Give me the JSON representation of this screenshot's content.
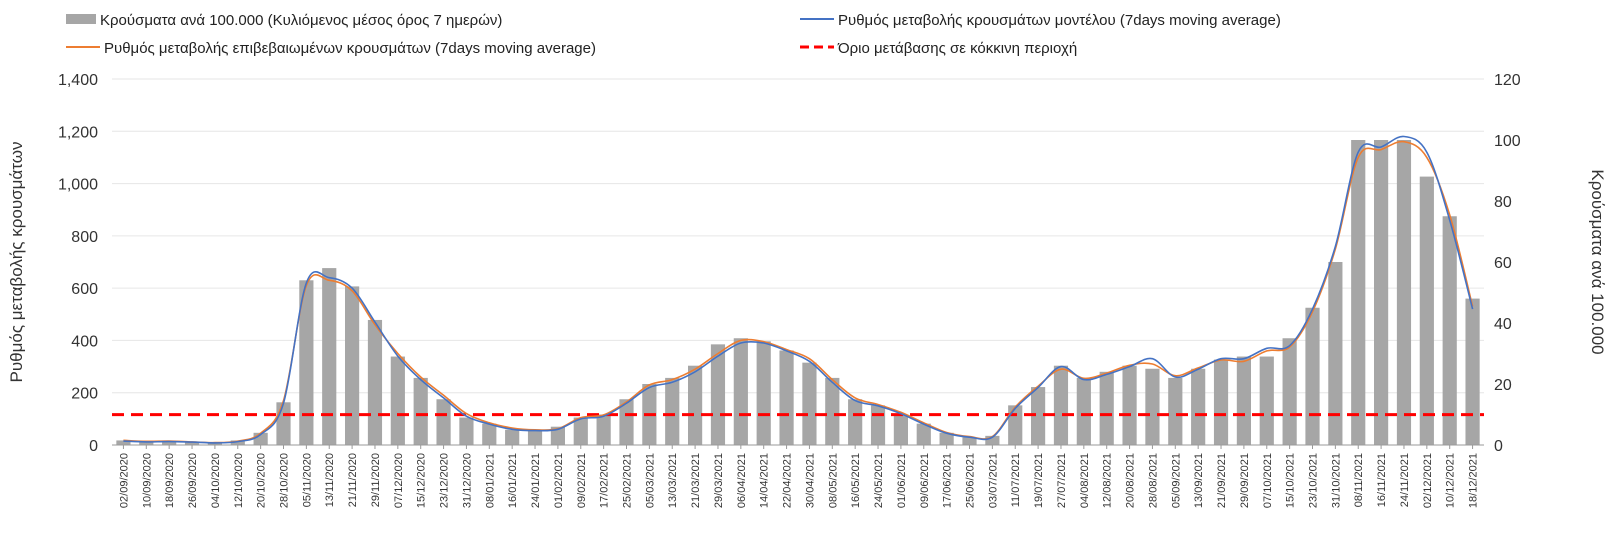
{
  "chart_data": {
    "type": "bar",
    "title": "",
    "ylabel": "Ρυθμός μεταβολής κρουσμάτων",
    "y2label": "Κρούσματα ανά 100.000",
    "ylim": [
      0,
      1400
    ],
    "y2lim": [
      0,
      120
    ],
    "yticks": [
      "0",
      "200",
      "400",
      "600",
      "800",
      "1,000",
      "1,200",
      "1,400"
    ],
    "y2ticks": [
      "0",
      "20",
      "40",
      "60",
      "80",
      "100",
      "120"
    ],
    "grid": true,
    "legend_position": "top",
    "x_labels": [
      "02/09/2020",
      "10/09/2020",
      "18/09/2020",
      "26/09/2020",
      "04/10/2020",
      "12/10/2020",
      "20/10/2020",
      "28/10/2020",
      "05/11/2020",
      "13/11/2020",
      "21/11/2020",
      "29/11/2020",
      "07/12/2020",
      "15/12/2020",
      "23/12/2020",
      "31/12/2020",
      "08/01/2021",
      "16/01/2021",
      "24/01/2021",
      "01/02/2021",
      "09/02/2021",
      "17/02/2021",
      "25/02/2021",
      "05/03/2021",
      "13/03/2021",
      "21/03/2021",
      "29/03/2021",
      "06/04/2021",
      "14/04/2021",
      "22/04/2021",
      "30/04/2021",
      "08/05/2021",
      "16/05/2021",
      "24/05/2021",
      "01/06/2021",
      "09/06/2021",
      "17/06/2021",
      "25/06/2021",
      "03/07/2021",
      "11/07/2021",
      "19/07/2021",
      "27/07/2021",
      "04/08/2021",
      "12/08/2021",
      "20/08/2021",
      "28/08/2021",
      "05/09/2021",
      "13/09/2021",
      "21/09/2021",
      "29/09/2021",
      "07/10/2021",
      "15/10/2021",
      "23/10/2021",
      "31/10/2021",
      "08/11/2021",
      "16/11/2021",
      "24/11/2021",
      "02/12/2021",
      "10/12/2021",
      "18/12/2021"
    ],
    "series": [
      {
        "name": "Κρούσματα ανά 100.000 (Κυλιόμενος μέσος όρος 7 ημερών)",
        "kind": "bar",
        "axis": "right",
        "color": "#a6a6a6",
        "values": [
          1.5,
          1.2,
          1.3,
          1.1,
          0.8,
          1.5,
          4,
          14,
          54,
          58,
          52,
          41,
          29,
          22,
          15,
          9,
          7,
          5,
          5,
          6,
          9,
          10,
          15,
          20,
          22,
          26,
          33,
          35,
          34,
          31,
          27,
          22,
          15,
          13,
          10,
          7,
          4,
          2.5,
          3,
          13,
          19,
          26,
          22,
          24,
          26,
          25,
          22,
          25,
          28,
          29,
          29,
          35,
          45,
          60,
          100,
          100,
          100,
          88,
          75,
          48
        ]
      },
      {
        "name": "Ρυθμός μεταβολής κρουσμάτων μοντέλου (7days moving average)",
        "kind": "line",
        "axis": "left",
        "color": "#4472c4",
        "values": [
          15,
          12,
          13,
          11,
          8,
          13,
          40,
          160,
          620,
          640,
          600,
          470,
          340,
          250,
          180,
          110,
          80,
          60,
          55,
          60,
          100,
          110,
          160,
          220,
          240,
          280,
          340,
          390,
          390,
          360,
          320,
          240,
          170,
          150,
          120,
          80,
          45,
          30,
          30,
          140,
          220,
          300,
          250,
          270,
          300,
          330,
          260,
          290,
          330,
          330,
          370,
          380,
          520,
          760,
          1120,
          1140,
          1180,
          1120,
          860,
          520
        ]
      },
      {
        "name": "Ρυθμός μεταβολής επιβεβαιωμένων κρουσμάτων (7days moving average)",
        "kind": "line",
        "axis": "left",
        "color": "#ed7d31",
        "values": [
          18,
          14,
          15,
          12,
          9,
          15,
          45,
          170,
          610,
          630,
          590,
          460,
          350,
          260,
          190,
          120,
          85,
          65,
          58,
          62,
          105,
          115,
          165,
          230,
          250,
          290,
          350,
          400,
          395,
          365,
          330,
          250,
          180,
          155,
          125,
          85,
          48,
          32,
          32,
          145,
          225,
          290,
          255,
          275,
          305,
          310,
          265,
          295,
          325,
          320,
          360,
          375,
          510,
          750,
          1100,
          1130,
          1160,
          1100,
          880,
          530
        ]
      },
      {
        "name": "Όριο μετάβασης σε κόκκινη περιοχή",
        "kind": "threshold",
        "axis": "left",
        "color": "#ff0000",
        "value": 116
      }
    ]
  }
}
